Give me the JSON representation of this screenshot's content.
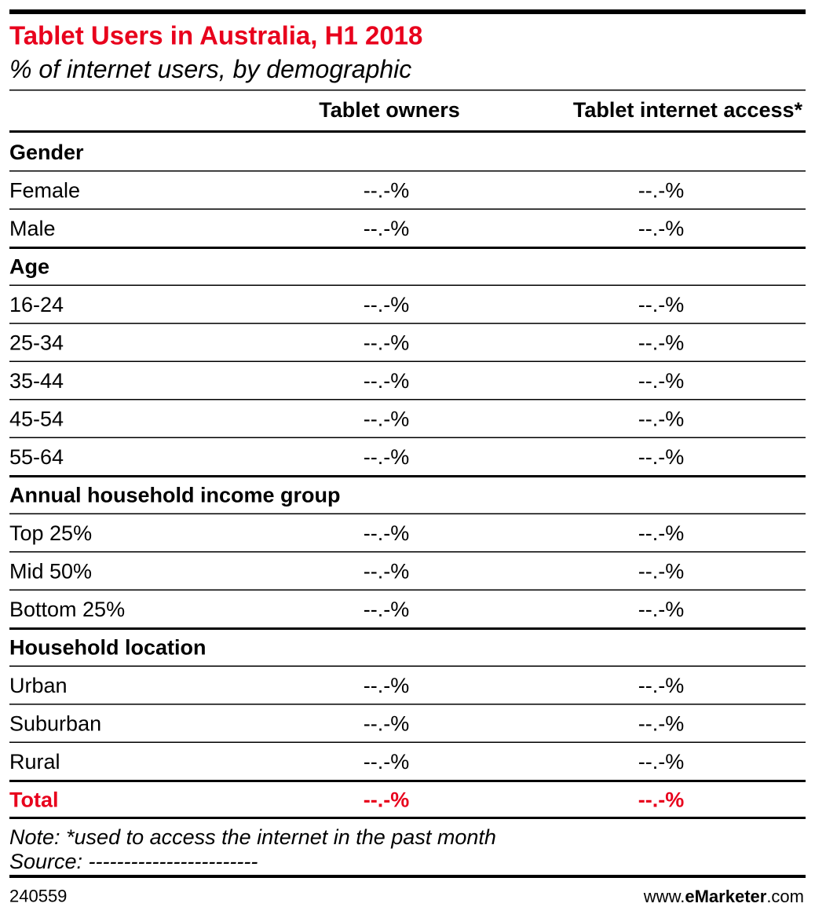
{
  "header": {
    "title": "Tablet Users in Australia, H1 2018",
    "subtitle": "% of internet users, by demographic"
  },
  "table": {
    "columns": [
      "Tablet owners",
      "Tablet internet access*"
    ],
    "sections": [
      {
        "label": "Gender",
        "rows": [
          {
            "label": "Female",
            "values": [
              "--.-%",
              "--.-%"
            ]
          },
          {
            "label": "Male",
            "values": [
              "--.-%",
              "--.-%"
            ]
          }
        ]
      },
      {
        "label": "Age",
        "rows": [
          {
            "label": "16-24",
            "values": [
              "--.-%",
              "--.-%"
            ]
          },
          {
            "label": "25-34",
            "values": [
              "--.-%",
              "--.-%"
            ]
          },
          {
            "label": "35-44",
            "values": [
              "--.-%",
              "--.-%"
            ]
          },
          {
            "label": "45-54",
            "values": [
              "--.-%",
              "--.-%"
            ]
          },
          {
            "label": "55-64",
            "values": [
              "--.-%",
              "--.-%"
            ]
          }
        ]
      },
      {
        "label": "Annual household income group",
        "rows": [
          {
            "label": "Top 25%",
            "values": [
              "--.-%",
              "--.-%"
            ]
          },
          {
            "label": "Mid 50%",
            "values": [
              "--.-%",
              "--.-%"
            ]
          },
          {
            "label": "Bottom 25%",
            "values": [
              "--.-%",
              "--.-%"
            ]
          }
        ]
      },
      {
        "label": "Household location",
        "rows": [
          {
            "label": "Urban",
            "values": [
              "--.-%",
              "--.-%"
            ]
          },
          {
            "label": "Suburban",
            "values": [
              "--.-%",
              "--.-%"
            ]
          },
          {
            "label": "Rural",
            "values": [
              "--.-%",
              "--.-%"
            ]
          }
        ]
      }
    ],
    "total": {
      "label": "Total",
      "values": [
        "--.-%",
        "--.-%"
      ]
    }
  },
  "footer": {
    "note": "Note: *used to access the internet in the past month",
    "source": "Source: ------------------------",
    "id": "240559",
    "site": [
      "www.",
      "eMarketer",
      ".com"
    ]
  }
}
